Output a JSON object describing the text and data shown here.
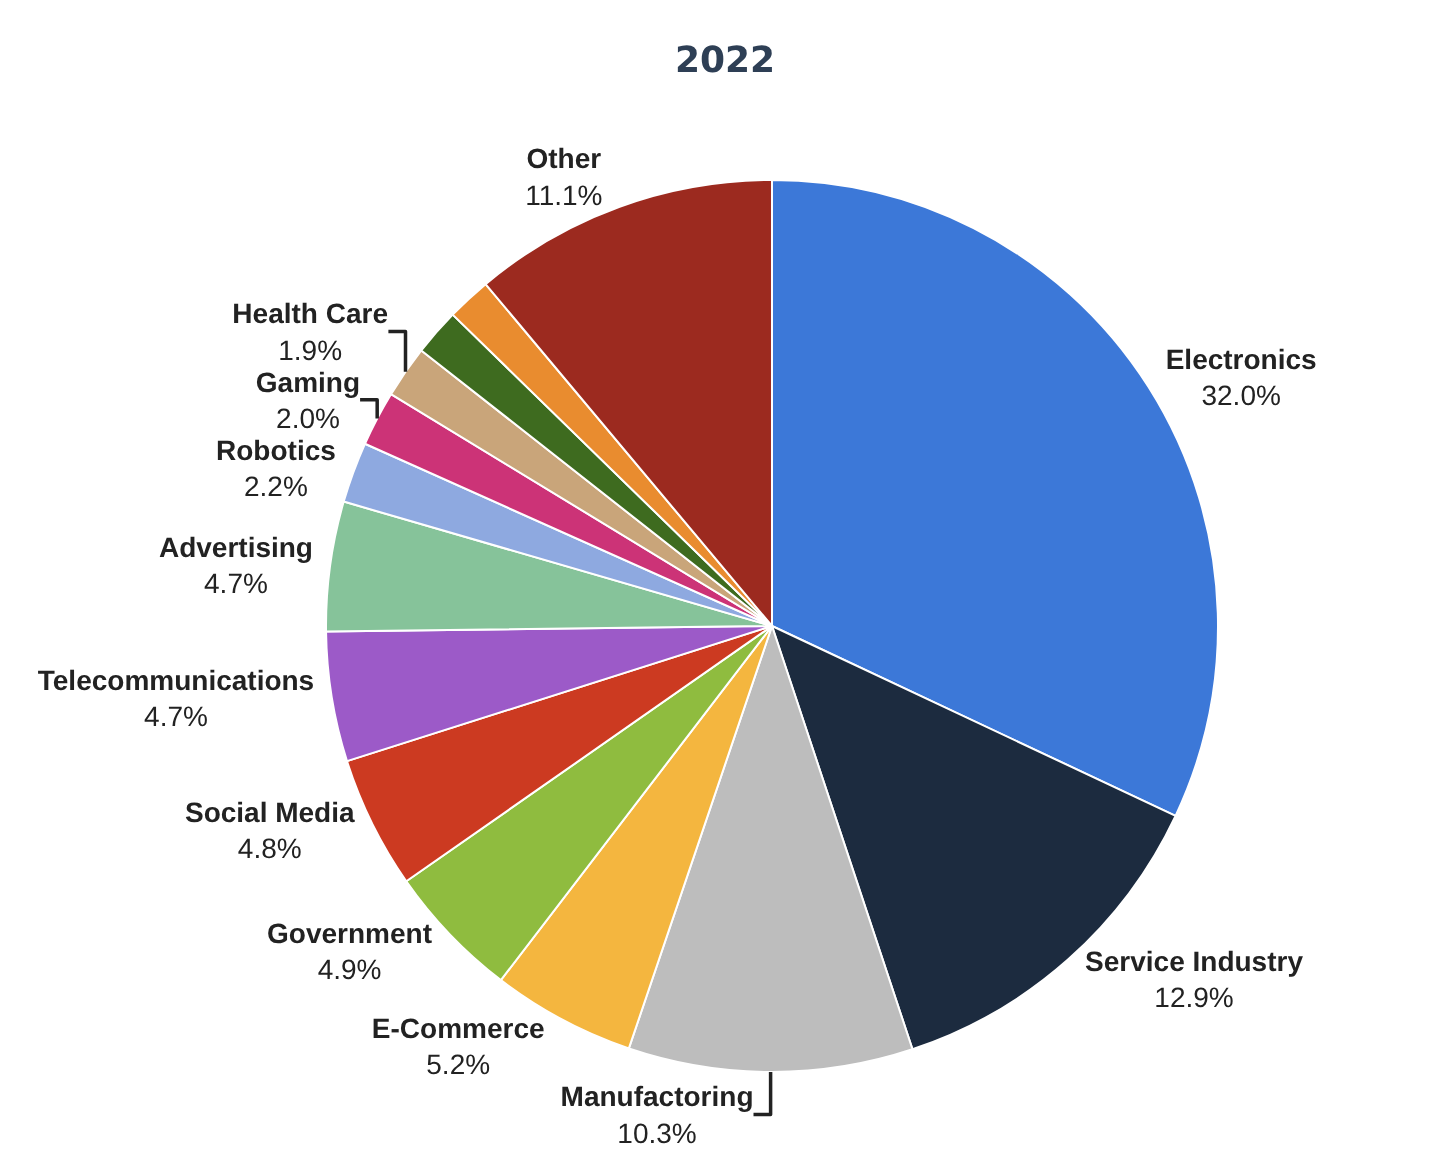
{
  "chart_data": {
    "type": "pie",
    "title": "2022",
    "categories": [
      "Electronics",
      "Service Industry",
      "Manufactoring",
      "E-Commerce",
      "Government",
      "Social Media",
      "Telecommunications",
      "Advertising",
      "Robotics",
      "Gaming",
      "Health Care",
      null,
      null,
      "Other"
    ],
    "values": [
      32.0,
      12.9,
      10.3,
      5.2,
      4.9,
      4.8,
      4.7,
      4.7,
      2.2,
      2.0,
      1.9,
      1.7,
      1.6,
      11.1
    ],
    "value_labels": [
      "32.0%",
      "12.9%",
      "10.3%",
      "5.2%",
      "4.9%",
      "4.8%",
      "4.7%",
      "4.7%",
      "2.2%",
      "2.0%",
      "1.9%",
      null,
      null,
      "11.1%"
    ],
    "colors": [
      "#3c78d8",
      "#1c2b3f",
      "#bdbdbd",
      "#f4b63f",
      "#8fbc3f",
      "#cc3a21",
      "#9c5ac8",
      "#86c39a",
      "#8ea9e0",
      "#cc3377",
      "#c9a57a",
      "#3e6b1f",
      "#e98c2f",
      "#9c2a1f"
    ],
    "legend": false
  }
}
